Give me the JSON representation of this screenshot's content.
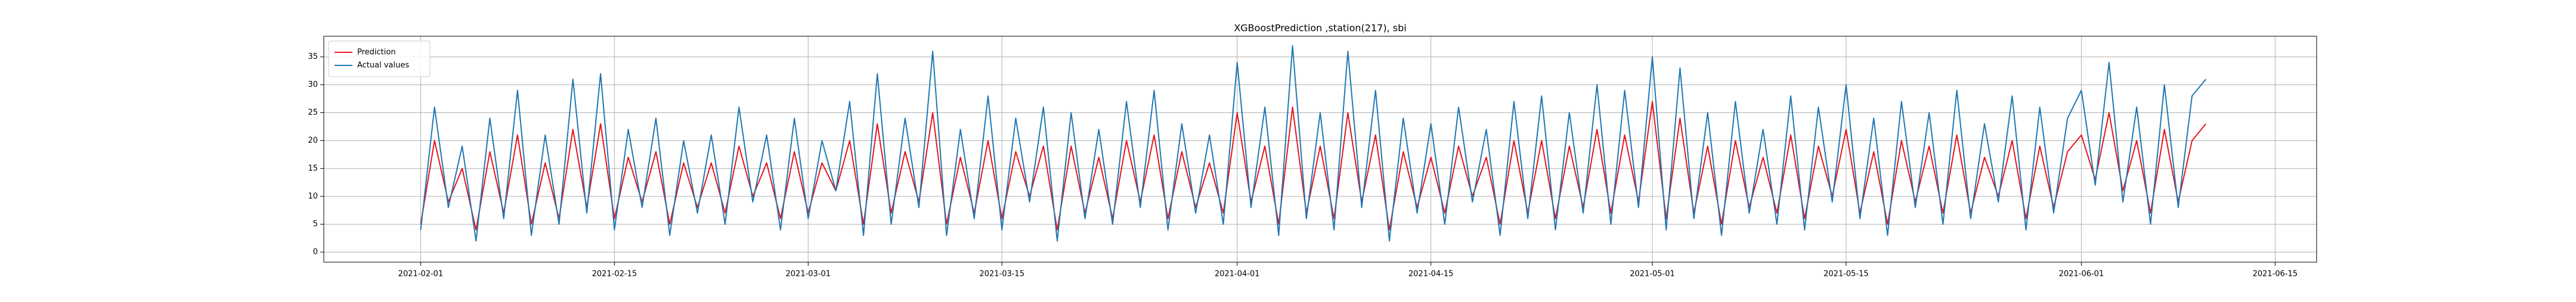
{
  "chart_data": {
    "type": "line",
    "title": "XGBoostPrediction ,station(217), sbi",
    "x": [
      "2021-02-01",
      "2021-02-02",
      "2021-02-03",
      "2021-02-04",
      "2021-02-05",
      "2021-02-06",
      "2021-02-07",
      "2021-02-08",
      "2021-02-09",
      "2021-02-10",
      "2021-02-11",
      "2021-02-12",
      "2021-02-13",
      "2021-02-14",
      "2021-02-15",
      "2021-02-16",
      "2021-02-17",
      "2021-02-18",
      "2021-02-19",
      "2021-02-20",
      "2021-02-21",
      "2021-02-22",
      "2021-02-23",
      "2021-02-24",
      "2021-02-25",
      "2021-02-26",
      "2021-02-27",
      "2021-02-28",
      "2021-03-01",
      "2021-03-02",
      "2021-03-03",
      "2021-03-04",
      "2021-03-05",
      "2021-03-06",
      "2021-03-07",
      "2021-03-08",
      "2021-03-09",
      "2021-03-10",
      "2021-03-11",
      "2021-03-12",
      "2021-03-13",
      "2021-03-14",
      "2021-03-15",
      "2021-03-16",
      "2021-03-17",
      "2021-03-18",
      "2021-03-19",
      "2021-03-20",
      "2021-03-21",
      "2021-03-22",
      "2021-03-23",
      "2021-03-24",
      "2021-03-25",
      "2021-03-26",
      "2021-03-27",
      "2021-03-28",
      "2021-03-29",
      "2021-03-30",
      "2021-03-31",
      "2021-04-01",
      "2021-04-02",
      "2021-04-03",
      "2021-04-04",
      "2021-04-05",
      "2021-04-06",
      "2021-04-07",
      "2021-04-08",
      "2021-04-09",
      "2021-04-10",
      "2021-04-11",
      "2021-04-12",
      "2021-04-13",
      "2021-04-14",
      "2021-04-15",
      "2021-04-16",
      "2021-04-17",
      "2021-04-18",
      "2021-04-19",
      "2021-04-20",
      "2021-04-21",
      "2021-04-22",
      "2021-04-23",
      "2021-04-24",
      "2021-04-25",
      "2021-04-26",
      "2021-04-27",
      "2021-04-28",
      "2021-04-29",
      "2021-04-30",
      "2021-05-01",
      "2021-05-02",
      "2021-05-03",
      "2021-05-04",
      "2021-05-05",
      "2021-05-06",
      "2021-05-07",
      "2021-05-08",
      "2021-05-09",
      "2021-05-10",
      "2021-05-11",
      "2021-05-12",
      "2021-05-13",
      "2021-05-14",
      "2021-05-15",
      "2021-05-16",
      "2021-05-17",
      "2021-05-18",
      "2021-05-19",
      "2021-05-20",
      "2021-05-21",
      "2021-05-22",
      "2021-05-23",
      "2021-05-24",
      "2021-05-25",
      "2021-05-26",
      "2021-05-27",
      "2021-05-28",
      "2021-05-29",
      "2021-05-30",
      "2021-05-31",
      "2021-06-01",
      "2021-06-02",
      "2021-06-03",
      "2021-06-04",
      "2021-06-05",
      "2021-06-06",
      "2021-06-07",
      "2021-06-08",
      "2021-06-09",
      "2021-06-10"
    ],
    "series": [
      {
        "name": "Prediction",
        "color": "#e8141c",
        "values": [
          5,
          20,
          9,
          15,
          4,
          18,
          7,
          21,
          5,
          16,
          6,
          22,
          8,
          23,
          6,
          17,
          9,
          18,
          5,
          16,
          8,
          16,
          7,
          19,
          10,
          16,
          6,
          18,
          7,
          16,
          11,
          20,
          5,
          23,
          7,
          18,
          9,
          25,
          5,
          17,
          7,
          20,
          6,
          18,
          10,
          19,
          4,
          19,
          7,
          17,
          6,
          20,
          9,
          21,
          6,
          18,
          8,
          16,
          7,
          25,
          9,
          19,
          5,
          26,
          7,
          19,
          6,
          25,
          9,
          21,
          4,
          18,
          8,
          17,
          7,
          19,
          10,
          17,
          5,
          20,
          7,
          20,
          6,
          19,
          8,
          22,
          7,
          21,
          9,
          27,
          6,
          24,
          7,
          19,
          5,
          20,
          8,
          17,
          7,
          21,
          6,
          19,
          10,
          22,
          7,
          18,
          5,
          20,
          9,
          19,
          7,
          21,
          7,
          17,
          10,
          20,
          6,
          19,
          8,
          18,
          21,
          13,
          25,
          11,
          20,
          7,
          22,
          9,
          20,
          23
        ]
      },
      {
        "name": "Actual values",
        "color": "#1f77b4",
        "values": [
          4,
          26,
          8,
          19,
          2,
          24,
          6,
          29,
          3,
          21,
          5,
          31,
          7,
          32,
          4,
          22,
          8,
          24,
          3,
          20,
          7,
          21,
          5,
          26,
          9,
          21,
          4,
          24,
          6,
          20,
          11,
          27,
          3,
          32,
          5,
          24,
          8,
          36,
          3,
          22,
          6,
          28,
          4,
          24,
          9,
          26,
          2,
          25,
          6,
          22,
          5,
          27,
          8,
          29,
          4,
          23,
          7,
          21,
          5,
          34,
          8,
          26,
          3,
          37,
          6,
          25,
          4,
          36,
          8,
          29,
          2,
          24,
          7,
          23,
          5,
          26,
          9,
          22,
          3,
          27,
          6,
          28,
          4,
          25,
          7,
          30,
          5,
          29,
          8,
          35,
          4,
          33,
          6,
          25,
          3,
          27,
          7,
          22,
          5,
          28,
          4,
          26,
          9,
          30,
          6,
          24,
          3,
          27,
          8,
          25,
          5,
          29,
          6,
          23,
          9,
          28,
          4,
          26,
          7,
          24,
          29,
          12,
          34,
          9,
          26,
          5,
          30,
          8,
          28,
          31
        ]
      }
    ],
    "xlim": [
      "2021-01-25",
      "2021-06-18"
    ],
    "xticks": [
      "2021-02-01",
      "2021-02-15",
      "2021-03-01",
      "2021-03-15",
      "2021-04-01",
      "2021-04-15",
      "2021-05-01",
      "2021-05-15",
      "2021-06-01",
      "2021-06-15"
    ],
    "ylim": [
      -1.8,
      38.7
    ],
    "yticks": [
      0,
      5,
      10,
      15,
      20,
      25,
      30,
      35
    ],
    "grid": true,
    "legend": "upper left"
  }
}
